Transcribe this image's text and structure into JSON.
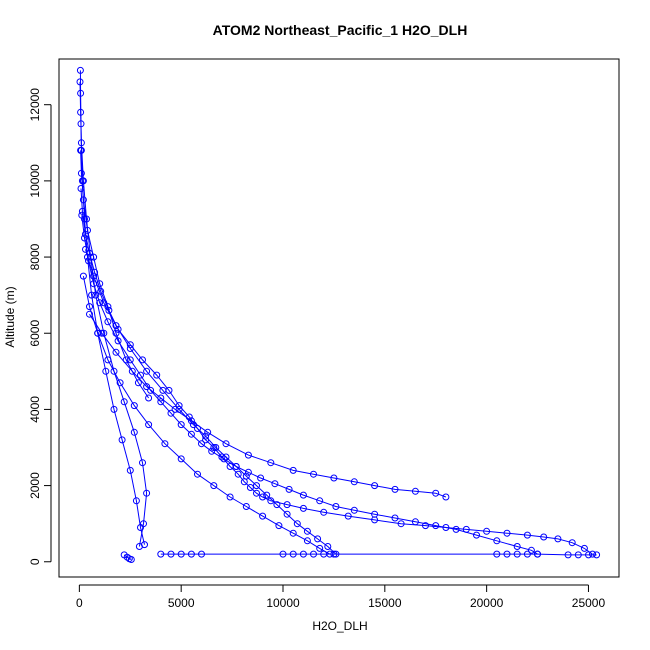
{
  "chart_data": {
    "type": "scatter",
    "title": "ATOM2 Northeast_Pacific_1 H2O_DLH",
    "xlabel": "H2O_DLH",
    "ylabel": "Altitude (m)",
    "xlim": [
      -1000,
      26500
    ],
    "ylim": [
      -400,
      13200
    ],
    "x_ticks": [
      0,
      5000,
      10000,
      15000,
      20000,
      25000
    ],
    "y_ticks": [
      0,
      2000,
      4000,
      6000,
      8000,
      10000,
      12000
    ],
    "x_tick_labels": [
      "0",
      "5000",
      "10000",
      "15000",
      "20000",
      "25000"
    ],
    "y_tick_labels": [
      "0",
      "2000",
      "4000",
      "6000",
      "8000",
      "10000",
      "12000"
    ],
    "marker": "open-circle",
    "connected": true,
    "grid": false,
    "legend": "none",
    "color": "#0000ff",
    "profiles": [
      {
        "x": [
          50,
          60,
          80,
          100,
          150,
          250,
          400,
          600,
          900,
          1300,
          1700,
          2100,
          2500,
          2800,
          3000,
          3200
        ],
        "y": [
          12900,
          12300,
          11500,
          10800,
          10000,
          9000,
          8000,
          7000,
          6000,
          5000,
          4000,
          3200,
          2400,
          1600,
          900,
          450
        ]
      },
      {
        "x": [
          30,
          60,
          100,
          200,
          350,
          550,
          800,
          1200,
          1700,
          2200,
          2700,
          3100,
          3300,
          3150,
          2950
        ],
        "y": [
          12600,
          11800,
          11000,
          10000,
          9000,
          8000,
          7000,
          6000,
          5000,
          4200,
          3400,
          2600,
          1800,
          1000,
          400
        ]
      },
      {
        "x": [
          60,
          100,
          200,
          400,
          700,
          1000,
          1400,
          1800,
          2300,
          2900,
          3400
        ],
        "y": [
          10800,
          10200,
          9500,
          8700,
          8000,
          7300,
          6700,
          6000,
          5300,
          4700,
          4300
        ]
      },
      {
        "x": [
          80,
          150,
          300,
          500,
          750,
          1050,
          1450,
          1900,
          2500,
          3100,
          3800,
          4400,
          4900,
          5400,
          5800,
          6200,
          6600,
          7000,
          7400,
          7800,
          8100,
          8400,
          8700,
          9000,
          9400,
          10200,
          11000,
          12000,
          13200,
          14500,
          15800,
          17000,
          18000,
          19000,
          20000,
          21000,
          22000,
          22800,
          23500,
          24200,
          24800,
          25200
        ],
        "y": [
          9800,
          9200,
          8600,
          8100,
          7600,
          7100,
          6600,
          6100,
          5700,
          5300,
          4900,
          4500,
          4100,
          3800,
          3500,
          3200,
          3000,
          2750,
          2500,
          2300,
          2100,
          1950,
          1800,
          1700,
          1600,
          1500,
          1400,
          1300,
          1200,
          1100,
          1000,
          950,
          900,
          850,
          800,
          750,
          700,
          650,
          600,
          500,
          350,
          200
        ]
      },
      {
        "x": [
          120,
          250,
          450,
          700,
          1000,
          1400,
          1900,
          2500,
          3000,
          3500,
          4000,
          4500,
          5000,
          5500,
          6000,
          6500,
          7100,
          7700,
          8300,
          8900,
          9600,
          10300,
          11000,
          11800,
          12600,
          13500,
          14500,
          15500,
          16500,
          17500,
          18500,
          19500,
          20500,
          21500,
          22200,
          22500
        ],
        "y": [
          9100,
          8500,
          7900,
          7300,
          6800,
          6300,
          5800,
          5300,
          4900,
          4500,
          4200,
          3900,
          3600,
          3350,
          3100,
          2900,
          2700,
          2500,
          2350,
          2200,
          2050,
          1900,
          1750,
          1600,
          1450,
          1350,
          1250,
          1150,
          1050,
          950,
          850,
          700,
          550,
          400,
          300,
          200
        ]
      },
      {
        "x": [
          200,
          500,
          900,
          1400,
          2000,
          2700,
          3400,
          4200,
          5000,
          5800,
          6600,
          7400,
          8200,
          9000,
          9800,
          10500,
          11200,
          11800,
          12300
        ],
        "y": [
          7500,
          6700,
          6000,
          5300,
          4700,
          4100,
          3600,
          3100,
          2700,
          2300,
          2000,
          1700,
          1450,
          1200,
          950,
          750,
          550,
          350,
          200
        ]
      },
      {
        "x": [
          300,
          700,
          1200,
          1800,
          2500,
          3300,
          4100,
          4900,
          5600,
          6200,
          6700,
          7200,
          7700,
          8200,
          8700,
          9200,
          9700,
          10200,
          10700,
          11200,
          11700,
          12200,
          12600
        ],
        "y": [
          8200,
          7500,
          6800,
          6200,
          5600,
          5000,
          4500,
          4000,
          3600,
          3300,
          3000,
          2750,
          2500,
          2250,
          2000,
          1750,
          1500,
          1250,
          1000,
          800,
          600,
          400,
          200
        ]
      },
      {
        "x": [
          500,
          1100,
          1800,
          2600,
          3300,
          4000,
          4700,
          5500,
          6300,
          7200,
          8300,
          9400,
          10500,
          11500,
          12500,
          13500,
          14500,
          15500,
          16500,
          17500,
          18000
        ],
        "y": [
          6500,
          6000,
          5500,
          5000,
          4600,
          4300,
          4000,
          3700,
          3400,
          3100,
          2800,
          2600,
          2400,
          2300,
          2200,
          2100,
          2000,
          1900,
          1850,
          1800,
          1700
        ]
      },
      {
        "x": [
          4000,
          4500,
          5000,
          5500,
          6000,
          10000,
          10500,
          11000,
          11500,
          12000,
          12500,
          20500,
          21000,
          21500,
          22000,
          22500,
          24000,
          24500,
          25000,
          25400
        ],
        "y": [
          200,
          200,
          200,
          200,
          200,
          200,
          200,
          200,
          200,
          200,
          200,
          200,
          200,
          200,
          200,
          200,
          180,
          180,
          180,
          180
        ]
      },
      {
        "x": [
          2200,
          2350,
          2450,
          2550
        ],
        "y": [
          180,
          120,
          80,
          60
        ]
      }
    ],
    "annotations_not_printed": []
  }
}
